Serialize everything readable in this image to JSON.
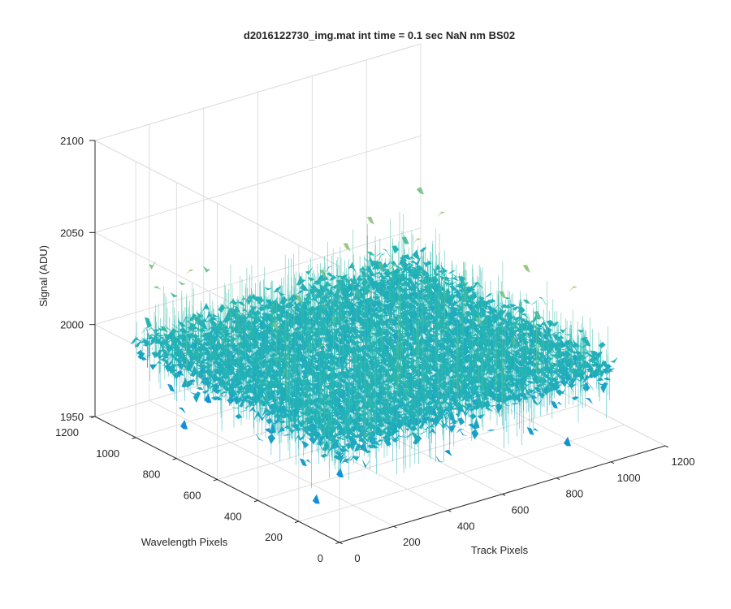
{
  "chart_data": {
    "type": "surface",
    "title": "d2016122730_img.mat int time = 0.1 sec  NaN nm BS02",
    "xlabel": "Track Pixels",
    "ylabel": "Wavelength Pixels",
    "zlabel": "Signal (ADU)",
    "xlim": [
      0,
      1200
    ],
    "ylim": [
      0,
      1200
    ],
    "zlim": [
      1950,
      2100
    ],
    "x_ticks": [
      0,
      200,
      400,
      600,
      800,
      1000,
      1200
    ],
    "y_ticks": [
      0,
      200,
      400,
      600,
      800,
      1000,
      1200
    ],
    "z_ticks": [
      1950,
      2000,
      2050,
      2100
    ],
    "x_tick_labels": [
      "0",
      "200",
      "400",
      "600",
      "800",
      "1000",
      "1200"
    ],
    "y_tick_labels": [
      "0",
      "200",
      "400",
      "600",
      "800",
      "1000",
      "1200"
    ],
    "z_tick_labels": [
      "1950",
      "2000",
      "2050",
      "2100"
    ],
    "data_extent": {
      "x": [
        0,
        1024
      ],
      "y": [
        0,
        1024
      ]
    },
    "surface_level": {
      "mean": 2000,
      "min": 1955,
      "max": 2085
    },
    "colormap": "parula",
    "colors": {
      "low": "#0f8fd8",
      "mid": "#26b8b0",
      "high": "#cfd36a"
    },
    "grid": true,
    "box": true
  }
}
